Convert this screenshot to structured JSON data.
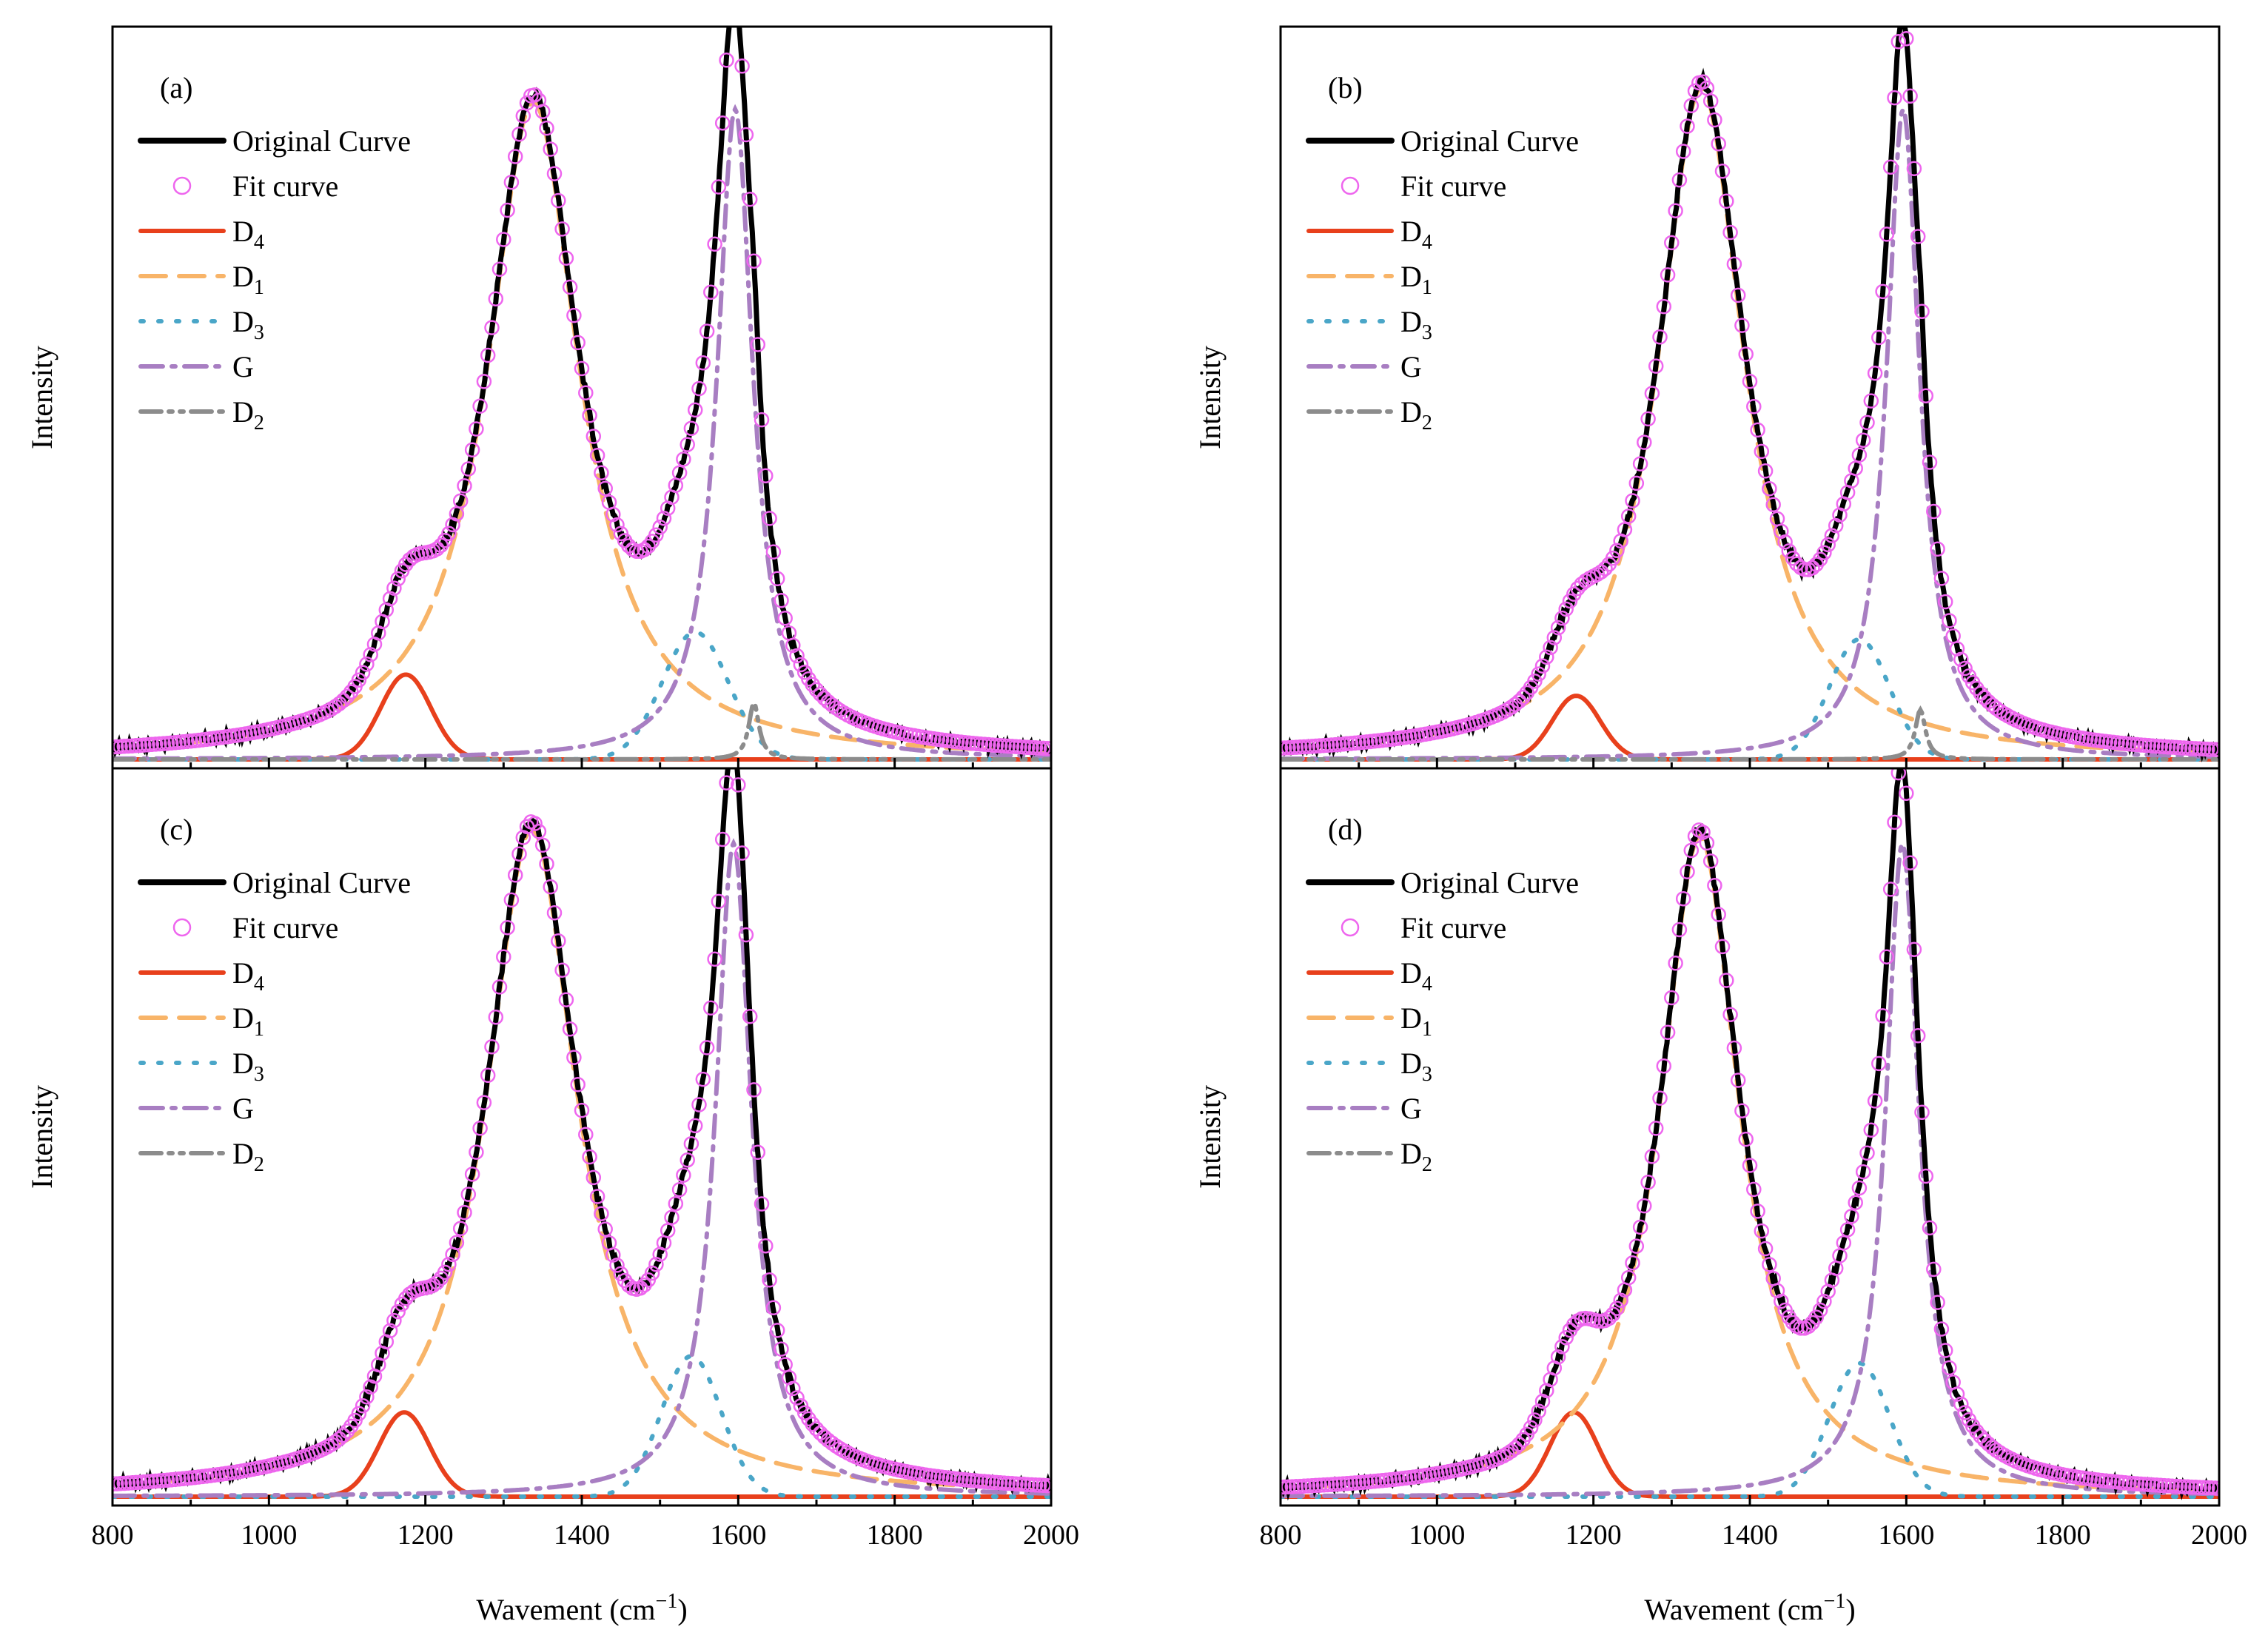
{
  "figure": {
    "ylabel": "Intensity",
    "xlabel_main": "Wavement (cm",
    "xlabel_sup": "−1",
    "xlabel_close": ")",
    "xticks": [
      800,
      1000,
      1200,
      1400,
      1600,
      1800,
      2000
    ]
  },
  "colors": {
    "original": "#000000",
    "fit": "#ee66ee",
    "D4": "#e8401c",
    "D1": "#f8b468",
    "D3": "#4aa6c8",
    "G": "#a87ec2",
    "D2": "#8c8c8c"
  },
  "legend": [
    {
      "key": "original",
      "label": "Original Curve",
      "sub": ""
    },
    {
      "key": "fit",
      "label": "Fit curve",
      "sub": ""
    },
    {
      "key": "D4",
      "label": "D",
      "sub": "4"
    },
    {
      "key": "D1",
      "label": "D",
      "sub": "1"
    },
    {
      "key": "D3",
      "label": "D",
      "sub": "3"
    },
    {
      "key": "G",
      "label": "G",
      "sub": ""
    },
    {
      "key": "D2",
      "label": "D",
      "sub": "2"
    }
  ],
  "chart_data": [
    {
      "panel": "(a)",
      "type": "line",
      "xlim": [
        800,
        2000
      ],
      "ylim": [
        0,
        1.02
      ],
      "ylabel": "Intensity",
      "yticks_shown": false,
      "bands": [
        {
          "key": "D4",
          "center": 1175,
          "height": 0.12,
          "hwhm": 38,
          "shape": "gauss"
        },
        {
          "key": "D1",
          "center": 1338,
          "height": 0.93,
          "hwhm": 72,
          "shape": "lorentz"
        },
        {
          "key": "D3",
          "center": 1545,
          "height": 0.18,
          "hwhm": 50,
          "shape": "gauss"
        },
        {
          "key": "G",
          "center": 1596,
          "height": 0.92,
          "hwhm": 28,
          "shape": "lorentz"
        },
        {
          "key": "D2",
          "center": 1620,
          "height": 0.08,
          "hwhm": 8,
          "shape": "lorentz"
        }
      ]
    },
    {
      "panel": "(b)",
      "type": "line",
      "xlim": [
        800,
        2000
      ],
      "ylim": [
        0,
        1.02
      ],
      "ylabel": "Intensity",
      "yticks_shown": false,
      "bands": [
        {
          "key": "D4",
          "center": 1178,
          "height": 0.09,
          "hwhm": 36,
          "shape": "gauss"
        },
        {
          "key": "D1",
          "center": 1338,
          "height": 0.95,
          "hwhm": 68,
          "shape": "lorentz"
        },
        {
          "key": "D3",
          "center": 1540,
          "height": 0.17,
          "hwhm": 45,
          "shape": "gauss"
        },
        {
          "key": "G",
          "center": 1596,
          "height": 0.92,
          "hwhm": 26,
          "shape": "lorentz"
        },
        {
          "key": "D2",
          "center": 1618,
          "height": 0.07,
          "hwhm": 8,
          "shape": "lorentz"
        }
      ]
    },
    {
      "panel": "(c)",
      "type": "line",
      "xlim": [
        800,
        2000
      ],
      "ylim": [
        0,
        1.02
      ],
      "ylabel": "Intensity",
      "yticks_shown": false,
      "bands": [
        {
          "key": "D4",
          "center": 1173,
          "height": 0.12,
          "hwhm": 38,
          "shape": "gauss"
        },
        {
          "key": "D1",
          "center": 1336,
          "height": 0.95,
          "hwhm": 72,
          "shape": "lorentz"
        },
        {
          "key": "D3",
          "center": 1540,
          "height": 0.2,
          "hwhm": 45,
          "shape": "gauss"
        },
        {
          "key": "G",
          "center": 1594,
          "height": 0.93,
          "hwhm": 28,
          "shape": "lorentz"
        },
        {
          "key": "D2",
          "center": 1620,
          "height": 0.0,
          "hwhm": 8,
          "shape": "lorentz"
        }
      ]
    },
    {
      "panel": "(d)",
      "type": "line",
      "xlim": [
        800,
        2000
      ],
      "ylim": [
        0,
        1.02
      ],
      "ylabel": "Intensity",
      "yticks_shown": false,
      "bands": [
        {
          "key": "D4",
          "center": 1175,
          "height": 0.12,
          "hwhm": 36,
          "shape": "gauss"
        },
        {
          "key": "D1",
          "center": 1336,
          "height": 0.94,
          "hwhm": 62,
          "shape": "lorentz"
        },
        {
          "key": "D3",
          "center": 1540,
          "height": 0.19,
          "hwhm": 45,
          "shape": "gauss"
        },
        {
          "key": "G",
          "center": 1595,
          "height": 0.93,
          "hwhm": 26,
          "shape": "lorentz"
        },
        {
          "key": "D2",
          "center": 1620,
          "height": 0.0,
          "hwhm": 8,
          "shape": "lorentz"
        }
      ]
    }
  ]
}
